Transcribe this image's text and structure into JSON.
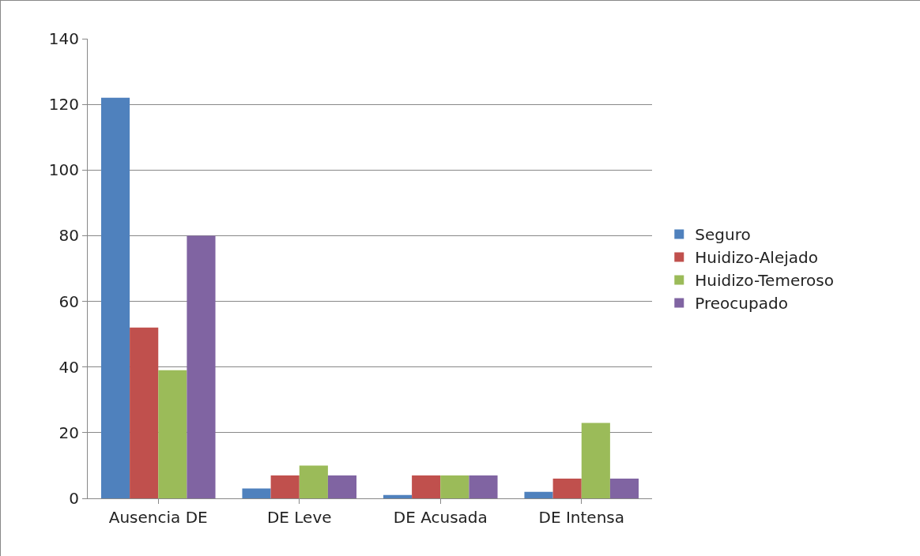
{
  "chart_data": {
    "type": "bar",
    "categories": [
      "Ausencia DE",
      "DE Leve",
      "DE Acusada",
      "DE Intensa"
    ],
    "series": [
      {
        "name": "Seguro",
        "color": "#4f81bd",
        "values": [
          122,
          3,
          1,
          2
        ]
      },
      {
        "name": "Huidizo-Alejado",
        "color": "#c0504d",
        "values": [
          52,
          7,
          7,
          6
        ]
      },
      {
        "name": "Huidizo-Temeroso",
        "color": "#9bbb59",
        "values": [
          39,
          10,
          7,
          23
        ]
      },
      {
        "name": "Preocupado",
        "color": "#8064a2",
        "values": [
          80,
          7,
          7,
          6
        ]
      }
    ],
    "ylim": [
      0,
      140
    ],
    "yticks": [
      0,
      20,
      40,
      60,
      80,
      100,
      120,
      140
    ],
    "grid": "y",
    "legend": "right"
  }
}
